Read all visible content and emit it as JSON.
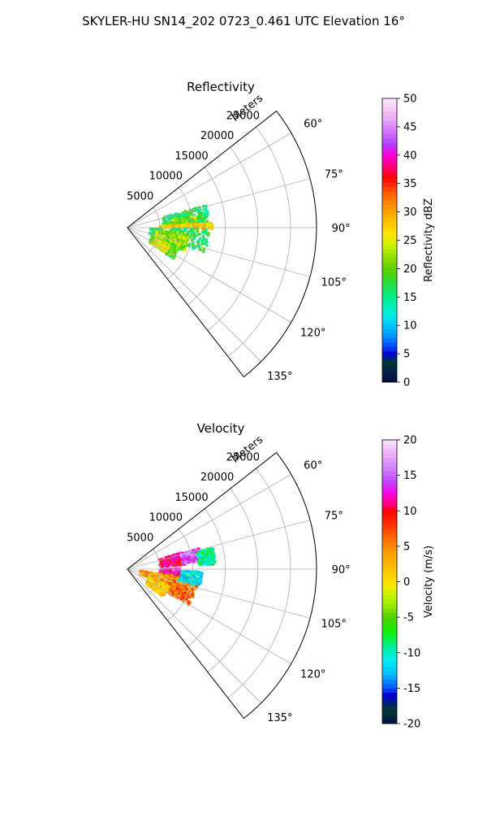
{
  "figure": {
    "suptitle": "SKYLER-HU  SN14_202  0723_0.461 UTC Elevation 16°"
  },
  "chart_data": [
    {
      "type": "polar-sector",
      "title": "Reflectivity",
      "radial_axis_label": "Meters",
      "radial_ticks": [
        5000,
        10000,
        15000,
        20000,
        25000
      ],
      "radial_tick_labels": [
        "5000",
        "10000",
        "15000",
        "20000",
        "25000"
      ],
      "rlim": [
        0,
        29000
      ],
      "theta_range_deg": [
        52,
        142
      ],
      "theta_ticks": [
        60,
        75,
        90,
        105,
        120,
        135
      ],
      "theta_tick_labels": [
        "60°",
        "75°",
        "90°",
        "105°",
        "120°",
        "135°"
      ],
      "grid": true,
      "echo_regions": [
        {
          "theta": [
            74,
            87
          ],
          "r": [
            5500,
            12500
          ],
          "value": 16
        },
        {
          "theta": [
            80,
            88
          ],
          "r": [
            7000,
            10500
          ],
          "value": 21
        },
        {
          "theta": [
            87,
            91
          ],
          "r": [
            5000,
            13000
          ],
          "value": 27
        },
        {
          "theta": [
            91,
            108
          ],
          "r": [
            3500,
            12500
          ],
          "value": 17
        },
        {
          "theta": [
            96,
            112
          ],
          "r": [
            4500,
            9500
          ],
          "value": 22
        },
        {
          "theta": [
            110,
            124
          ],
          "r": [
            4000,
            8500
          ],
          "value": 20
        },
        {
          "theta": [
            112,
            122
          ],
          "r": [
            4500,
            7000
          ],
          "value": 25
        }
      ],
      "colorbar": {
        "label": "Reflectivity dBZ",
        "range": [
          0,
          50
        ],
        "ticks": [
          0,
          5,
          10,
          15,
          20,
          25,
          30,
          35,
          40,
          45,
          50
        ],
        "tick_labels": [
          "0",
          "5",
          "10",
          "15",
          "20",
          "25",
          "30",
          "35",
          "40",
          "45",
          "50"
        ]
      }
    },
    {
      "type": "polar-sector",
      "title": "Velocity",
      "radial_axis_label": "Meters",
      "radial_ticks": [
        5000,
        10000,
        15000,
        20000,
        25000
      ],
      "radial_tick_labels": [
        "5000",
        "10000",
        "15000",
        "20000",
        "25000"
      ],
      "rlim": [
        0,
        29000
      ],
      "theta_range_deg": [
        52,
        142
      ],
      "theta_ticks": [
        60,
        75,
        90,
        105,
        120,
        135
      ],
      "theta_tick_labels": [
        "60°",
        "75°",
        "90°",
        "105°",
        "120°",
        "135°"
      ],
      "grid": true,
      "echo_regions": [
        {
          "theta": [
            73,
            86
          ],
          "r": [
            5000,
            9000
          ],
          "value": 11
        },
        {
          "theta": [
            74,
            84
          ],
          "r": [
            8500,
            11500
          ],
          "value": 15
        },
        {
          "theta": [
            76,
            87
          ],
          "r": [
            11000,
            13500
          ],
          "value": -9
        },
        {
          "theta": [
            92,
            104
          ],
          "r": [
            7000,
            11500
          ],
          "value": -11
        },
        {
          "theta": [
            90,
            98
          ],
          "r": [
            5000,
            8000
          ],
          "value": 13
        },
        {
          "theta": [
            98,
            112
          ],
          "r": [
            2000,
            8000
          ],
          "value": 4
        },
        {
          "theta": [
            104,
            120
          ],
          "r": [
            6500,
            11000
          ],
          "value": 6
        },
        {
          "theta": [
            112,
            128
          ],
          "r": [
            3500,
            7000
          ],
          "value": 1
        }
      ],
      "colorbar": {
        "label": "Velocity (m/s)",
        "range": [
          -20,
          20
        ],
        "ticks": [
          -20,
          -15,
          -10,
          -5,
          0,
          5,
          10,
          15,
          20
        ],
        "tick_labels": [
          "-20",
          "-15",
          "-10",
          "-5",
          "0",
          "5",
          "10",
          "15",
          "20"
        ]
      }
    }
  ]
}
